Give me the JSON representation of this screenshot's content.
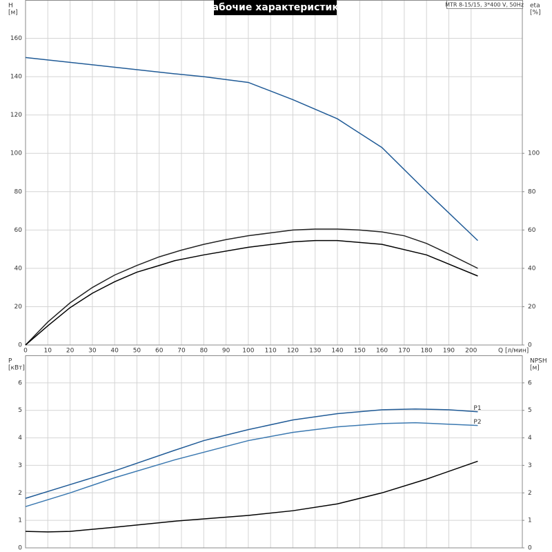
{
  "chart_data": [
    {
      "type": "line",
      "title": "Рабочие характеристики",
      "note": "MTR 8-15/15, 3*400 V, 50Hz",
      "ylabel": "H",
      "yunit": "[м]",
      "y2label": "eta",
      "y2unit": "[%]",
      "xlabel": "Q [л/мин]",
      "xlim": [
        0,
        223
      ],
      "xticks": [
        0,
        10,
        20,
        30,
        40,
        50,
        60,
        70,
        80,
        90,
        100,
        110,
        120,
        130,
        140,
        150,
        160,
        170,
        180,
        190,
        200
      ],
      "ylim": [
        0,
        180
      ],
      "yticks": [
        0,
        20,
        40,
        60,
        80,
        100,
        120,
        140,
        160
      ],
      "y2lim": [
        0,
        180
      ],
      "y2ticks": [
        0,
        20,
        40,
        60,
        80,
        100
      ],
      "grid": true,
      "xtick_labels": true,
      "series": [
        {
          "color": "#1f5a96",
          "x": [
            0,
            67,
            80,
            100,
            120,
            140,
            160,
            180,
            203
          ],
          "values": [
            150,
            141.5,
            140,
            137,
            128,
            118,
            103,
            80,
            54.5
          ]
        },
        {
          "color": "#222222",
          "axis": "y2",
          "x": [
            0,
            10,
            20,
            30,
            40,
            50,
            60,
            70,
            80,
            90,
            100,
            110,
            120,
            130,
            140,
            150,
            160,
            170,
            180,
            190,
            203
          ],
          "values": [
            0,
            12,
            22,
            30,
            36.5,
            41.5,
            46,
            49.5,
            52.5,
            55,
            57,
            58.5,
            60,
            60.5,
            60.5,
            60,
            59,
            57,
            53,
            47.5,
            40
          ]
        },
        {
          "color": "#000000",
          "axis": "y2",
          "x": [
            0,
            10,
            20,
            30,
            40,
            50,
            60,
            67,
            80,
            100,
            120,
            130,
            140,
            160,
            180,
            203
          ],
          "values": [
            0,
            10,
            19.5,
            27,
            33,
            38,
            41.5,
            44,
            47,
            51,
            53.8,
            54.5,
            54.5,
            52.5,
            47,
            36
          ]
        }
      ]
    },
    {
      "type": "line",
      "ylabel": "P",
      "yunit": "[кВт]",
      "y2label": "NPSH",
      "y2unit": "[м]",
      "xlim": [
        0,
        223
      ],
      "xticks": [
        0,
        10,
        20,
        30,
        40,
        50,
        60,
        70,
        80,
        90,
        100,
        110,
        120,
        130,
        140,
        150,
        160,
        170,
        180,
        190,
        200
      ],
      "ylim": [
        0,
        7
      ],
      "yticks": [
        0,
        1,
        2,
        3,
        4,
        5,
        6
      ],
      "y2lim": [
        0,
        7
      ],
      "y2ticks": [
        0,
        1,
        2,
        3,
        4,
        5,
        6
      ],
      "grid": true,
      "xtick_labels": false,
      "series": [
        {
          "name": "P1",
          "color": "#1f5a96",
          "x": [
            0,
            20,
            40,
            67,
            80,
            100,
            120,
            140,
            160,
            175,
            190,
            203
          ],
          "values": [
            1.8,
            2.3,
            2.8,
            3.55,
            3.9,
            4.3,
            4.65,
            4.88,
            5.02,
            5.05,
            5.02,
            4.95
          ]
        },
        {
          "name": "P2",
          "color": "#3a78b0",
          "x": [
            0,
            20,
            40,
            67,
            100,
            120,
            140,
            160,
            175,
            203
          ],
          "values": [
            1.5,
            2.0,
            2.55,
            3.2,
            3.9,
            4.2,
            4.4,
            4.52,
            4.55,
            4.45
          ]
        },
        {
          "color": "#000000",
          "axis": "y2",
          "x": [
            0,
            10,
            20,
            40,
            67,
            100,
            120,
            140,
            160,
            180,
            203
          ],
          "values": [
            0.6,
            0.58,
            0.6,
            0.75,
            0.97,
            1.18,
            1.35,
            1.6,
            2.0,
            2.5,
            3.15
          ]
        }
      ]
    }
  ]
}
